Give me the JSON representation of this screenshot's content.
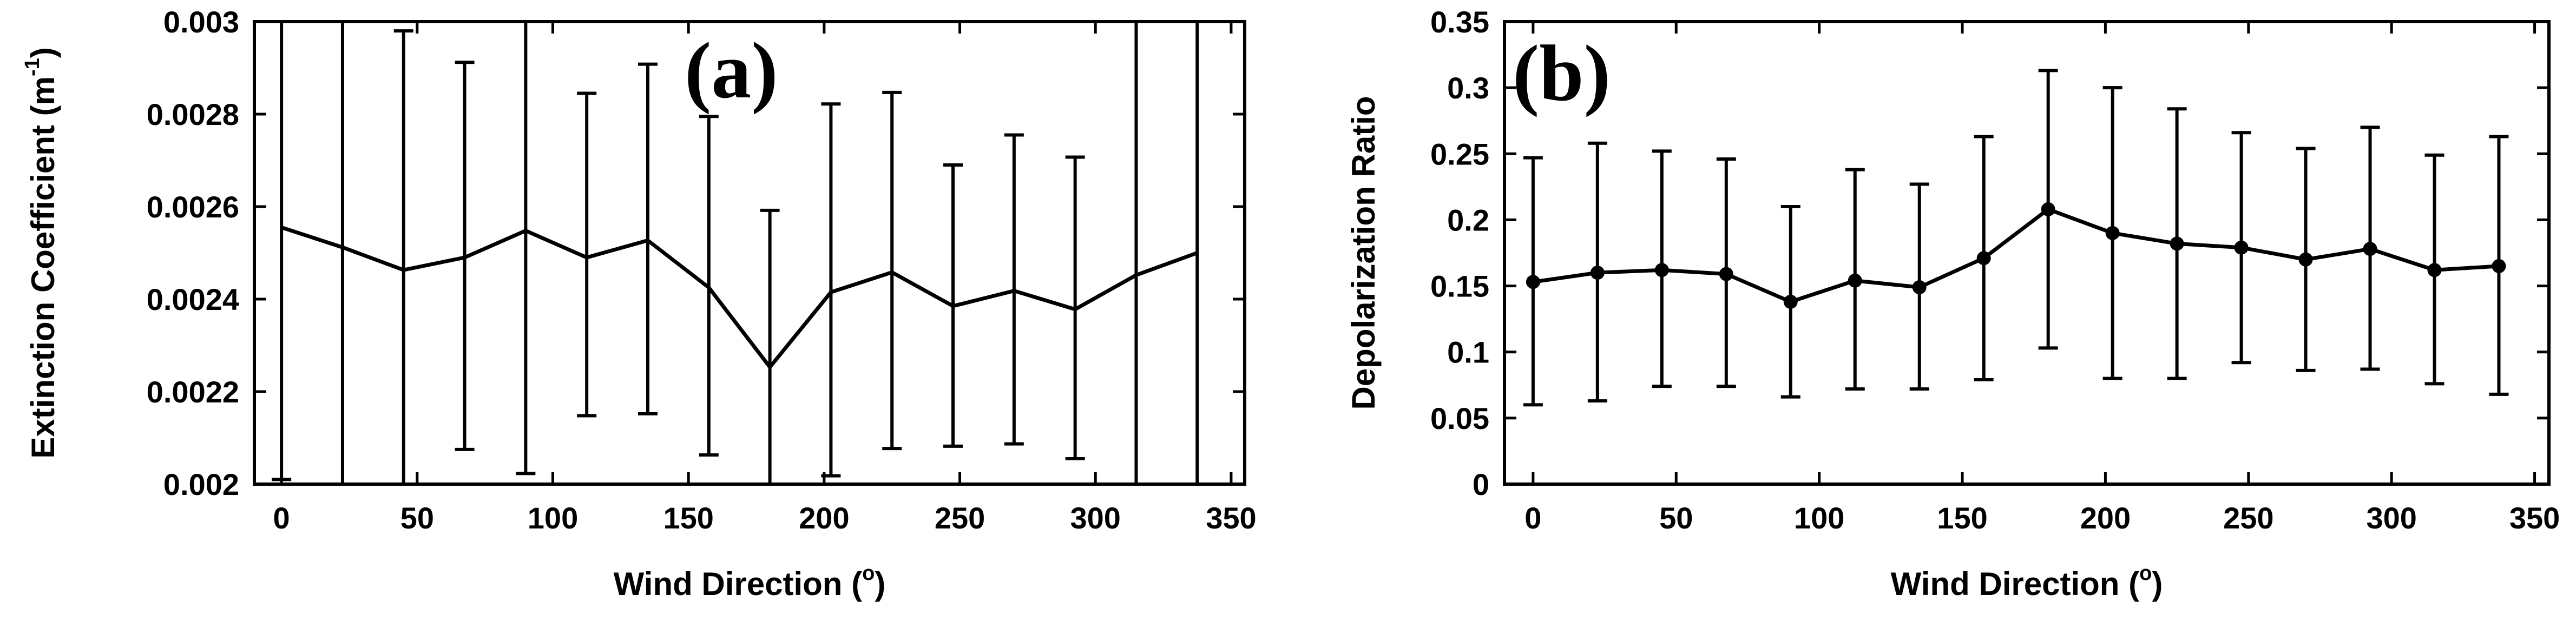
{
  "chart_data": [
    {
      "type": "line",
      "panel_label": "(a)",
      "xlabel": "Wind Direction (o)",
      "xlabel_main": "Wind Direction (",
      "xlabel_sup": "o",
      "xlabel_end": ")",
      "ylabel": "Extinction Coefficient (m-1)",
      "ylabel_main": "Extinction Coefficient (m",
      "ylabel_sup": "-1",
      "ylabel_end": ")",
      "xlim": [
        -10,
        355
      ],
      "ylim": [
        0.002,
        0.003
      ],
      "xticks": [
        0,
        50,
        100,
        150,
        200,
        250,
        300,
        350
      ],
      "xtick_labels": [
        "0",
        "50",
        "100",
        "150",
        "200",
        "250",
        "300",
        "350"
      ],
      "yticks": [
        0.002,
        0.0022,
        0.0024,
        0.0026,
        0.0028,
        0.003
      ],
      "ytick_labels": [
        "0.002",
        "0.0022",
        "0.0024",
        "0.0026",
        "0.0028",
        "0.003"
      ],
      "markers": false,
      "x": [
        0,
        22.5,
        45,
        67.5,
        90,
        112.5,
        135,
        157.5,
        180,
        202.5,
        225,
        247.5,
        270,
        292.5,
        315,
        337.5
      ],
      "y": [
        0.002555,
        0.002512,
        0.002463,
        0.00249,
        0.002548,
        0.00249,
        0.002527,
        0.002425,
        0.002253,
        0.002415,
        0.002458,
        0.002385,
        0.002418,
        0.002378,
        0.002452,
        0.0025
      ],
      "err_low": [
        0.00201,
        0.0019,
        0.0019,
        0.002075,
        0.002023,
        0.002148,
        0.002152,
        0.002063,
        0.0019,
        0.002018,
        0.002077,
        0.002082,
        0.002087,
        0.002055,
        0.0019,
        0.0019
      ],
      "err_high": [
        0.00305,
        0.00305,
        0.00298,
        0.002912,
        0.00305,
        0.002845,
        0.002908,
        0.002795,
        0.002592,
        0.002822,
        0.002847,
        0.00269,
        0.002755,
        0.002707,
        0.00305,
        0.00305
      ],
      "grid": false
    },
    {
      "type": "line",
      "panel_label": "(b)",
      "xlabel": "Wind Direction (o)",
      "xlabel_main": "Wind Direction (",
      "xlabel_sup": "o",
      "xlabel_end": ")",
      "ylabel": "Depolarization Ratio",
      "xlim": [
        -10,
        355
      ],
      "ylim": [
        0,
        0.35
      ],
      "xticks": [
        0,
        50,
        100,
        150,
        200,
        250,
        300,
        350
      ],
      "xtick_labels": [
        "0",
        "50",
        "100",
        "150",
        "200",
        "250",
        "300",
        "350"
      ],
      "yticks": [
        0,
        0.05,
        0.1,
        0.15,
        0.2,
        0.25,
        0.3,
        0.35
      ],
      "ytick_labels": [
        "0",
        "0.05",
        "0.1",
        "0.15",
        "0.2",
        "0.25",
        "0.3",
        "0.35"
      ],
      "markers": true,
      "x": [
        0,
        22.5,
        45,
        67.5,
        90,
        112.5,
        135,
        157.5,
        180,
        202.5,
        225,
        247.5,
        270,
        292.5,
        315,
        337.5
      ],
      "y": [
        0.153,
        0.16,
        0.162,
        0.159,
        0.138,
        0.154,
        0.149,
        0.171,
        0.208,
        0.19,
        0.182,
        0.179,
        0.17,
        0.178,
        0.162,
        0.165
      ],
      "err_low": [
        0.06,
        0.063,
        0.074,
        0.074,
        0.066,
        0.072,
        0.072,
        0.079,
        0.103,
        0.08,
        0.08,
        0.092,
        0.086,
        0.087,
        0.076,
        0.068
      ],
      "err_high": [
        0.247,
        0.258,
        0.252,
        0.246,
        0.21,
        0.238,
        0.227,
        0.263,
        0.313,
        0.3,
        0.284,
        0.266,
        0.254,
        0.27,
        0.249,
        0.263
      ],
      "grid": false
    }
  ]
}
